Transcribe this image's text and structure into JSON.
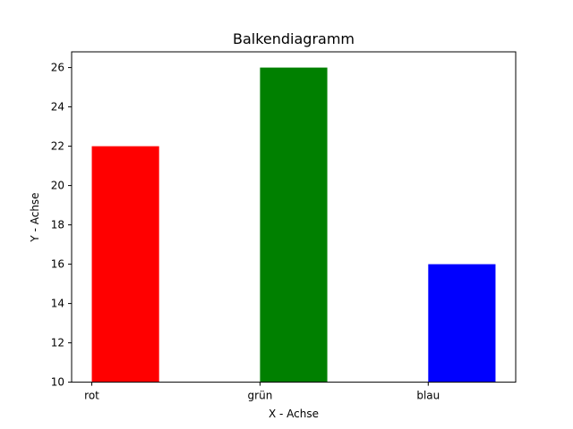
{
  "chart_data": {
    "type": "bar",
    "title": "Balkendiagramm",
    "xlabel": "X - Achse",
    "ylabel": "Y - Achse",
    "categories": [
      "rot",
      "grün",
      "blau"
    ],
    "values": [
      22,
      26,
      16
    ],
    "colors": [
      "#ff0000",
      "#008000",
      "#0000ff"
    ],
    "ylim": [
      10,
      26.8
    ],
    "yticks": [
      10,
      12,
      14,
      16,
      18,
      20,
      22,
      24,
      26
    ],
    "grid": false,
    "legend": "none"
  }
}
